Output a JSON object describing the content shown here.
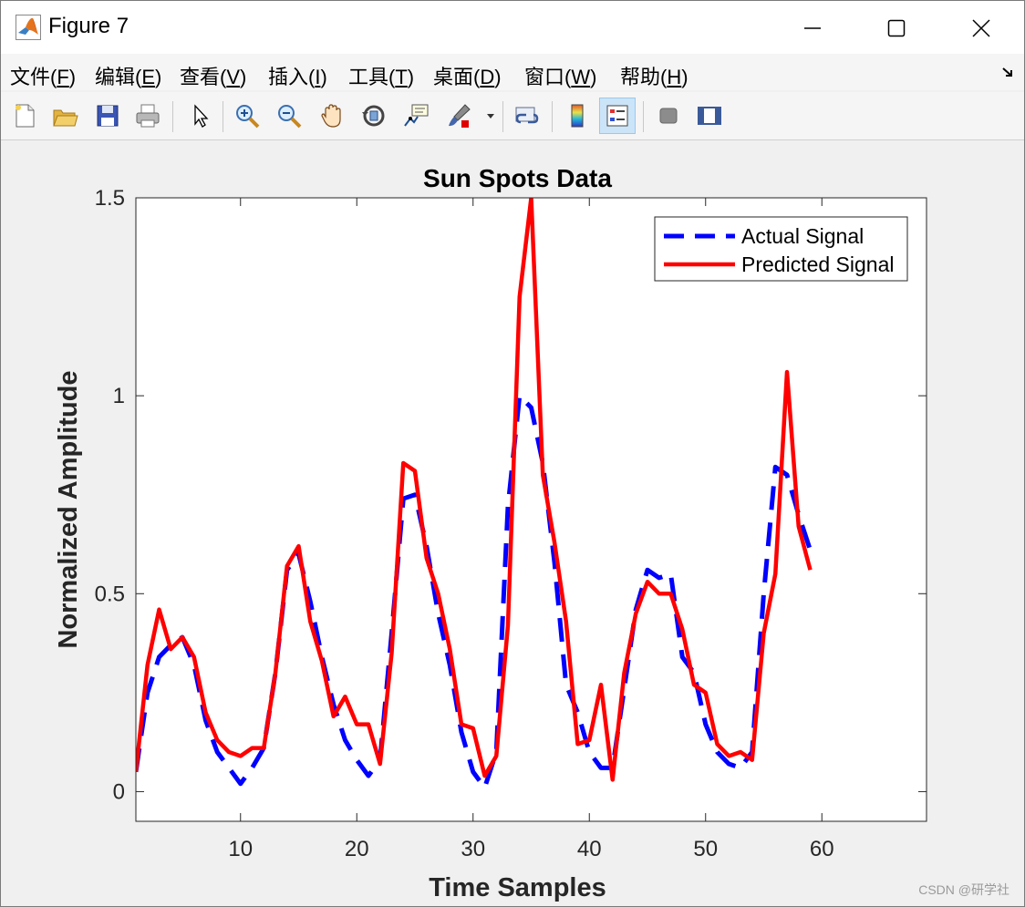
{
  "window": {
    "title": "Figure 7"
  },
  "menu": [
    {
      "label": "文件(",
      "key": "F",
      "tail": ")"
    },
    {
      "label": "编辑(",
      "key": "E",
      "tail": ")"
    },
    {
      "label": "查看(",
      "key": "V",
      "tail": ")"
    },
    {
      "label": "插入(",
      "key": "I",
      "tail": ")"
    },
    {
      "label": "工具(",
      "key": "T",
      "tail": ")"
    },
    {
      "label": "桌面(",
      "key": "D",
      "tail": ")"
    },
    {
      "label": "窗口(",
      "key": "W",
      "tail": ")"
    },
    {
      "label": "帮助(",
      "key": "H",
      "tail": ")"
    }
  ],
  "toolbar": {
    "icons": [
      "new-file-icon",
      "open-folder-icon",
      "save-icon",
      "print-icon",
      "pointer-icon",
      "zoom-in-icon",
      "zoom-out-icon",
      "pan-hand-icon",
      "rotate-3d-icon",
      "data-cursor-icon",
      "brush-icon",
      "link-plot-icon",
      "colorbar-icon",
      "legend-icon",
      "hide-tools-icon",
      "dock-panel-icon"
    ]
  },
  "watermark": "CSDN @研学社",
  "chart_data": {
    "type": "line",
    "title": "Sun Spots Data",
    "xlabel": "Time Samples",
    "ylabel": "Normalized Amplitude",
    "xlim": [
      1,
      69
    ],
    "ylim": [
      -0.075,
      1.5
    ],
    "xticks": [
      10,
      20,
      30,
      40,
      50,
      60
    ],
    "yticks": [
      0,
      0.5,
      1,
      1.5
    ],
    "ytick_labels": [
      "0",
      "0.5",
      "1",
      "1.5"
    ],
    "legend_position": "top-right",
    "grid": false,
    "x": [
      1,
      2,
      3,
      4,
      5,
      6,
      7,
      8,
      9,
      10,
      11,
      12,
      13,
      14,
      15,
      16,
      17,
      18,
      19,
      20,
      21,
      22,
      23,
      24,
      25,
      26,
      27,
      28,
      29,
      30,
      31,
      32,
      33,
      34,
      35,
      36,
      37,
      38,
      39,
      40,
      41,
      42,
      43,
      44,
      45,
      46,
      47,
      48,
      49,
      50,
      51,
      52,
      53,
      54,
      55,
      56,
      57,
      58,
      59
    ],
    "series": [
      {
        "name": "Actual Signal",
        "color": "#0000ff",
        "style": "dashed",
        "values": [
          0.05,
          0.25,
          0.34,
          0.37,
          0.39,
          0.32,
          0.18,
          0.1,
          0.06,
          0.02,
          0.06,
          0.11,
          0.3,
          0.56,
          0.6,
          0.48,
          0.34,
          0.22,
          0.13,
          0.08,
          0.04,
          0.08,
          0.4,
          0.74,
          0.75,
          0.62,
          0.45,
          0.32,
          0.15,
          0.05,
          0.01,
          0.1,
          0.72,
          1.0,
          0.97,
          0.83,
          0.58,
          0.27,
          0.2,
          0.1,
          0.06,
          0.06,
          0.26,
          0.46,
          0.56,
          0.54,
          0.55,
          0.34,
          0.3,
          0.17,
          0.1,
          0.07,
          0.06,
          0.1,
          0.5,
          0.82,
          0.8,
          0.7,
          0.61
        ]
      },
      {
        "name": "Predicted Signal",
        "color": "#ff0000",
        "style": "solid",
        "values": [
          0.05,
          0.32,
          0.46,
          0.36,
          0.39,
          0.34,
          0.2,
          0.13,
          0.1,
          0.09,
          0.11,
          0.11,
          0.3,
          0.57,
          0.62,
          0.43,
          0.33,
          0.19,
          0.24,
          0.17,
          0.17,
          0.07,
          0.35,
          0.83,
          0.81,
          0.59,
          0.5,
          0.36,
          0.17,
          0.16,
          0.04,
          0.09,
          0.42,
          1.25,
          1.5,
          0.8,
          0.63,
          0.43,
          0.12,
          0.13,
          0.27,
          0.03,
          0.3,
          0.45,
          0.53,
          0.5,
          0.5,
          0.41,
          0.27,
          0.25,
          0.12,
          0.09,
          0.1,
          0.08,
          0.4,
          0.55,
          1.06,
          0.67,
          0.56
        ]
      }
    ]
  }
}
